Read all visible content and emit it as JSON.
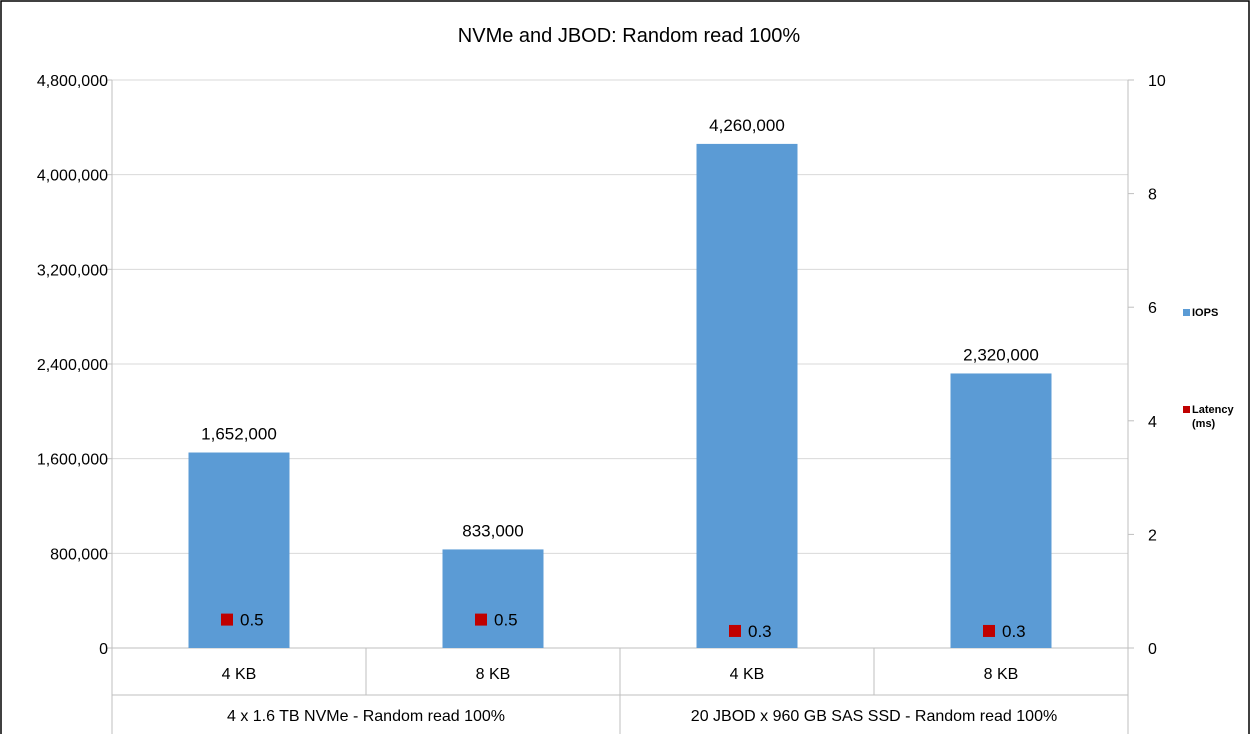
{
  "chart_data": {
    "type": "bar",
    "title": "NVMe and JBOD: Random read 100%",
    "categories": [
      "4 KB",
      "8 KB",
      "4 KB",
      "8 KB"
    ],
    "groups": [
      {
        "label": "4 x 1.6 TB NVMe - Random read 100%",
        "categories": [
          "4 KB",
          "8 KB"
        ]
      },
      {
        "label": "20 JBOD x 960 GB SAS SSD - Random read 100%",
        "categories": [
          "4 KB",
          "8 KB"
        ]
      }
    ],
    "series": [
      {
        "name": "IOPS",
        "type": "bar",
        "axis": "left",
        "color": "#5b9bd5",
        "values": [
          1652000,
          833000,
          4260000,
          2320000
        ],
        "labels": [
          "1,652,000",
          "833,000",
          "4,260,000",
          "2,320,000"
        ]
      },
      {
        "name": "Latency (ms)",
        "type": "scatter",
        "axis": "right",
        "color": "#c00000",
        "values": [
          0.5,
          0.5,
          0.3,
          0.3
        ],
        "labels": [
          "0.5",
          "0.5",
          "0.3",
          "0.3"
        ]
      }
    ],
    "y_left": {
      "ylim": [
        0,
        4800000
      ],
      "ticks": [
        0,
        800000,
        1600000,
        2400000,
        3200000,
        4000000,
        4800000
      ],
      "tick_labels": [
        "0",
        "800,000",
        "1,600,000",
        "2,400,000",
        "3,200,000",
        "4,000,000",
        "4,800,000"
      ]
    },
    "y_right": {
      "ylim": [
        0,
        10
      ],
      "ticks": [
        0,
        2,
        4,
        6,
        8,
        10
      ],
      "tick_labels": [
        "0",
        "2",
        "4",
        "6",
        "8",
        "10"
      ]
    },
    "legend": {
      "placement": "right",
      "entries": [
        "IOPS",
        "Latency (ms)"
      ]
    },
    "grid": true
  }
}
